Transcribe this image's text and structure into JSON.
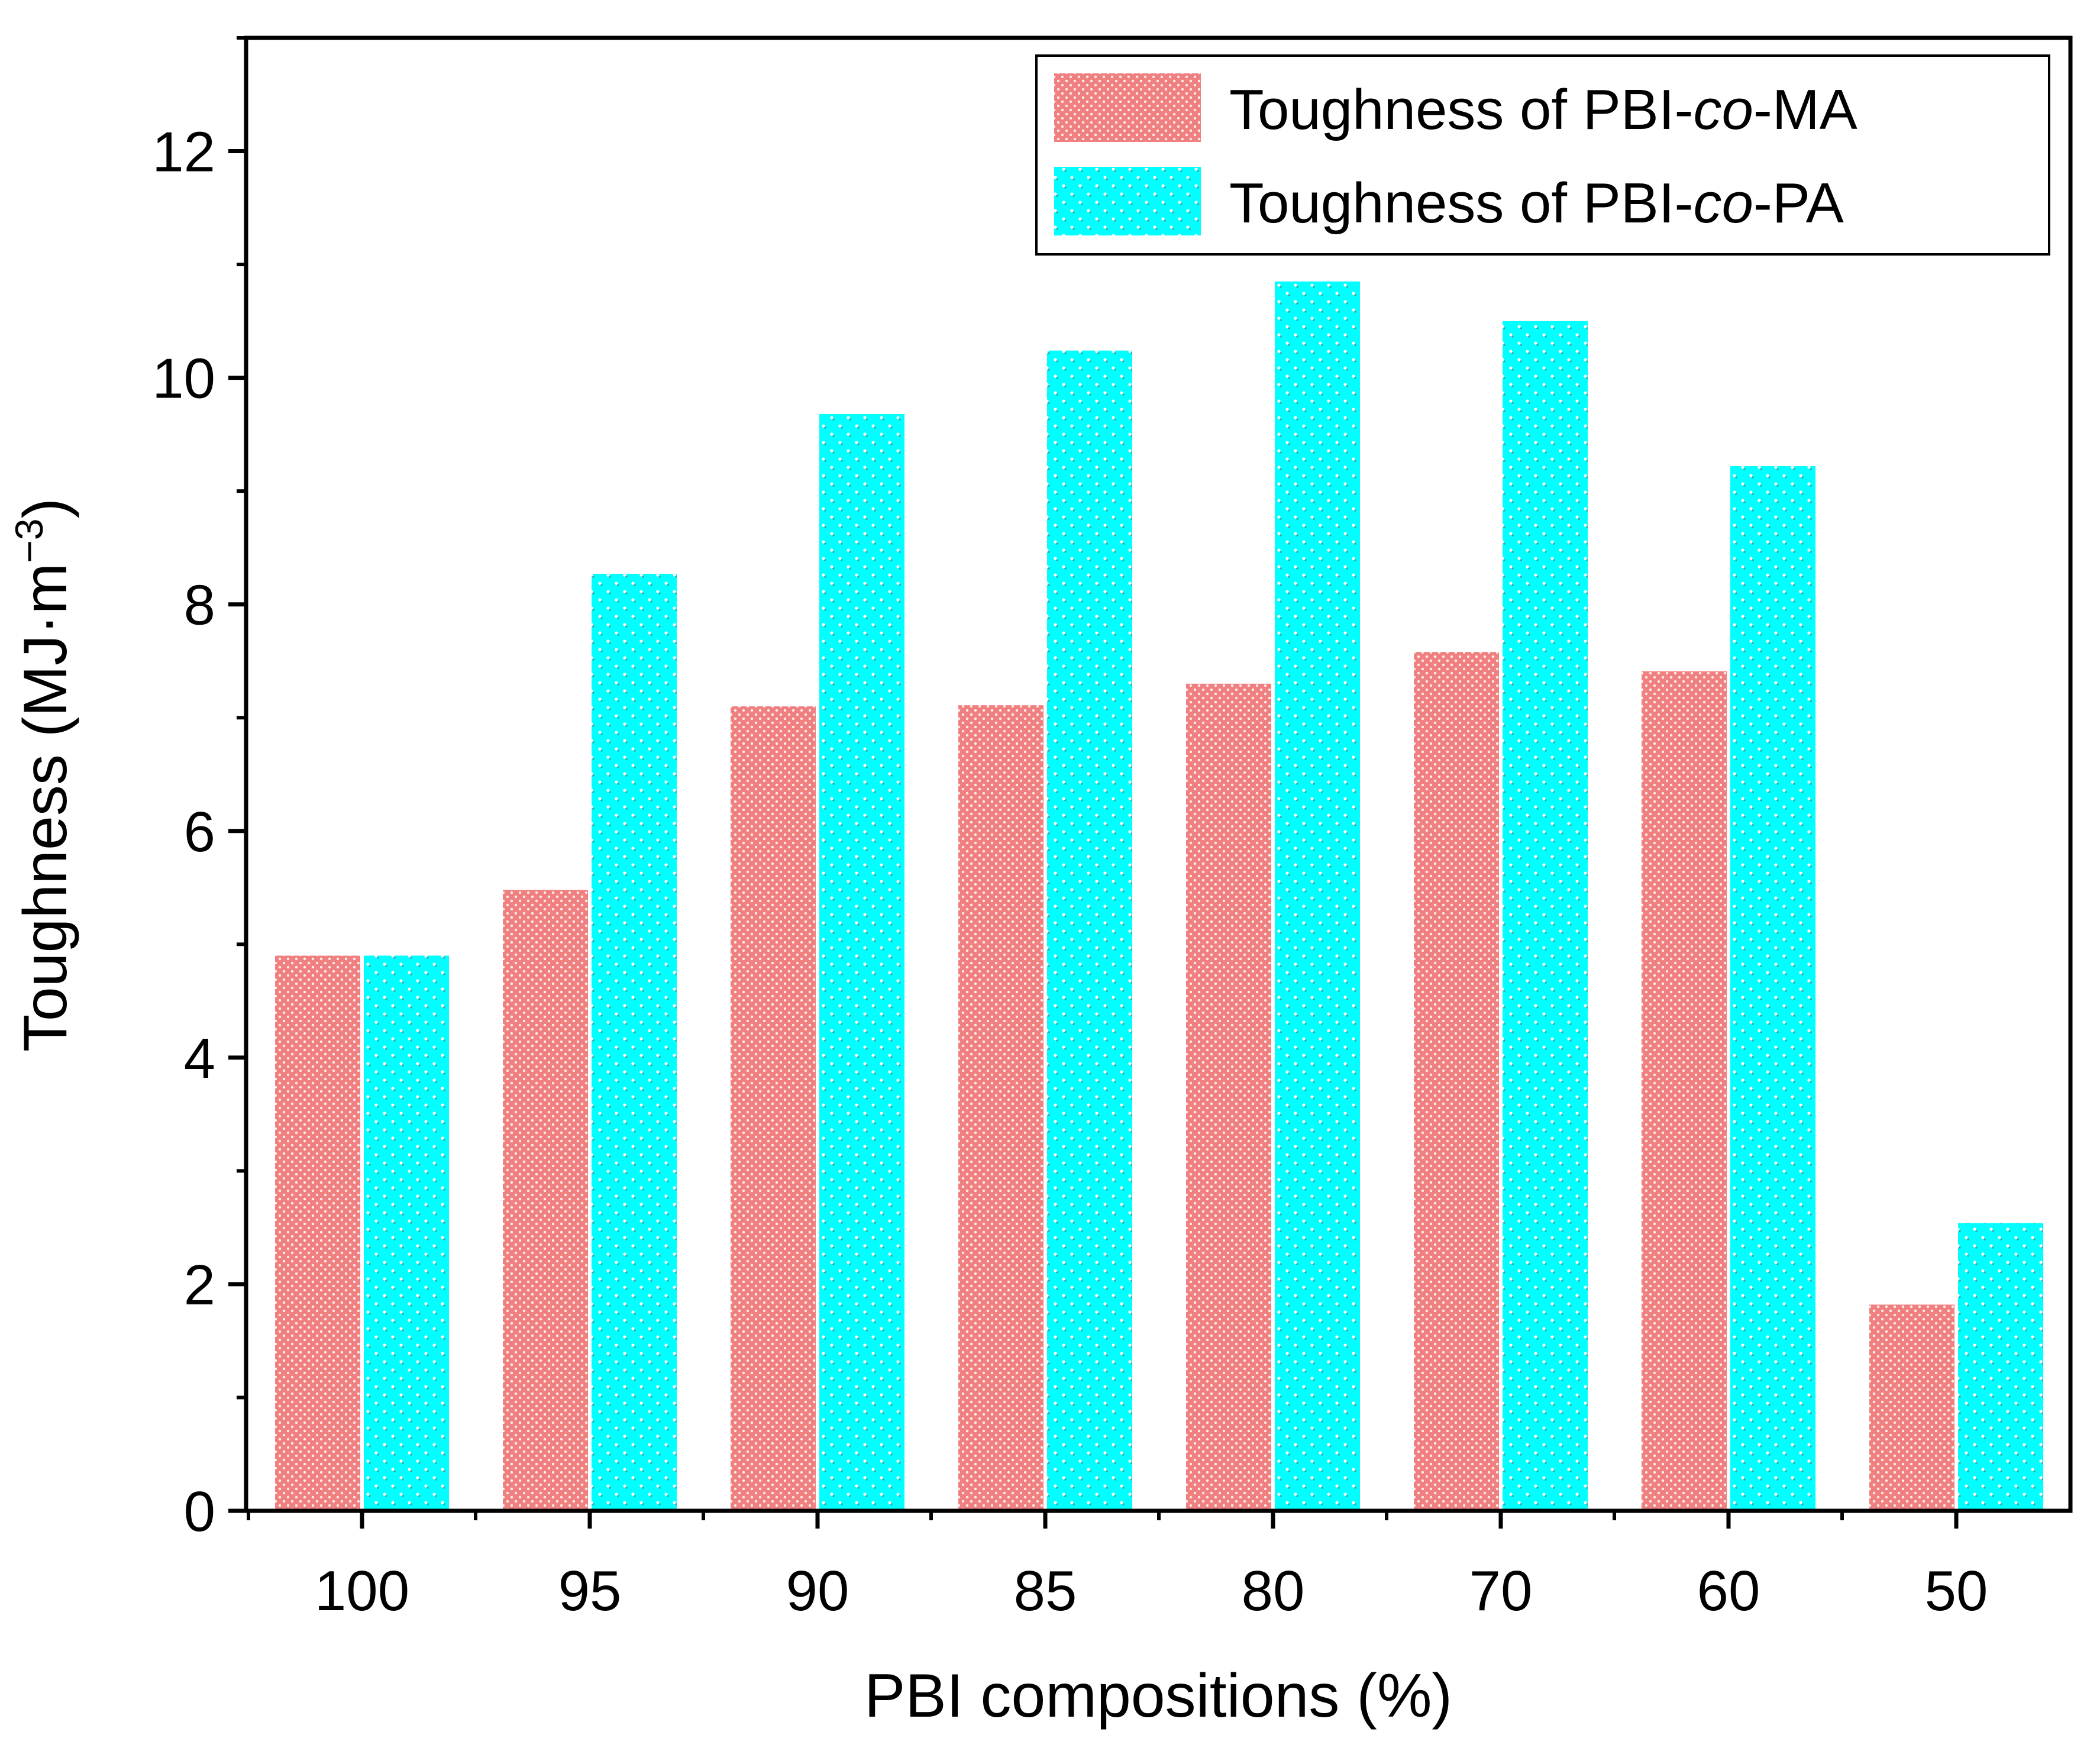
{
  "chart_data": {
    "type": "bar",
    "title": "",
    "xlabel": "PBI compositions (%)",
    "ylabel": "Toughness (MJ·m−3)",
    "ylabel_parts": {
      "main": "Toughness (MJ·m",
      "sup": "−3",
      "close": ")"
    },
    "categories": [
      "100",
      "95",
      "90",
      "85",
      "80",
      "70",
      "60",
      "50"
    ],
    "ylim": [
      0,
      13
    ],
    "yticks": [
      "0",
      "2",
      "4",
      "6",
      "8",
      "10",
      "12"
    ],
    "grid": false,
    "legend_position": "top-right",
    "series": [
      {
        "name": "Toughness of PBI-co-MA",
        "name_parts": {
          "pre": "Toughness of PBI-",
          "ital": "co",
          "post": "-MA"
        },
        "color": "#F08080",
        "values": [
          4.9,
          5.48,
          7.1,
          7.11,
          7.3,
          7.58,
          7.41,
          1.82
        ]
      },
      {
        "name": "Toughness of PBI-co-PA",
        "name_parts": {
          "pre": "Toughness of PBI-",
          "ital": "co",
          "post": "-PA"
        },
        "color": "#00FFFF",
        "values": [
          4.9,
          8.27,
          9.68,
          10.24,
          10.85,
          10.5,
          9.22,
          2.54
        ]
      }
    ]
  }
}
